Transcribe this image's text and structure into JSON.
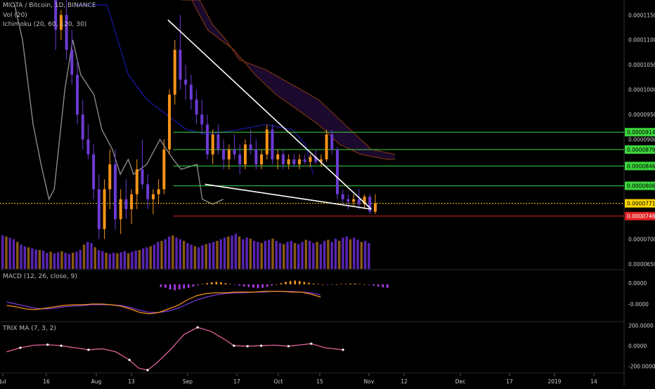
{
  "header": {
    "symbol_line": "MIOTA / Bitcoin, 1D, BINANCE",
    "vol_label": "Vol (20)",
    "ichimoku_label": "Ichimoku (20, 60, 120, 30)"
  },
  "colors": {
    "background": "#000000",
    "candle_up": "#f7931a",
    "candle_down": "#6c3bd2",
    "volume_up": "#8a5a12",
    "volume_down": "#5a24b5",
    "ichimoku_base": "#1a1aa8",
    "ichimoku_lagging": "#8a8a8a",
    "cloud_fill": "#1e0a33",
    "cloud_line": "#8a3c0a",
    "trendline": "#ffffff",
    "level_green": "#3cd63c",
    "current_price": "#ffd700",
    "support_red": "#e02020",
    "macd_line": "#f7931a",
    "signal_line": "#7b39d8",
    "hist_pos": "#f7931a",
    "hist_neg": "#b03cf0",
    "trix_line": "#e0609a"
  },
  "price_axis": {
    "ticks": [
      "0.00011500",
      "0.00011000",
      "0.00010500",
      "0.00010000",
      "0.00009500",
      "0.00009000",
      "0.00007000",
      "0.00006500"
    ],
    "tick_values": [
      0.000115,
      0.00011,
      0.000105,
      0.0001,
      9.5e-05,
      9e-05,
      7e-05,
      6.5e-05
    ],
    "range": [
      6.4e-05,
      0.000118
    ],
    "labels": [
      {
        "text": "0.00009146",
        "value": 9.146e-05,
        "color": "#3cd63c"
      },
      {
        "text": "0.00008797",
        "value": 8.797e-05,
        "color": "#3cd63c"
      },
      {
        "text": "0.00008467",
        "value": 8.467e-05,
        "color": "#3cd63c"
      },
      {
        "text": "0.00008069",
        "value": 8.069e-05,
        "color": "#3cd63c"
      },
      {
        "text": "0.00007717",
        "value": 7.717e-05,
        "color": "#ffd700"
      },
      {
        "text": "0.00007461",
        "value": 7.461e-05,
        "color": "#e02020"
      }
    ]
  },
  "macd_panel": {
    "label": "MACD (12, 26, close, 9)",
    "ticks": [
      "0.0000",
      "-0.0000"
    ]
  },
  "trix_panel": {
    "label": "TRIX MA (7, 3, 2)",
    "ticks": [
      "200.0000",
      "0.0000",
      "-200.0000"
    ],
    "tick_values": [
      200,
      0,
      -200
    ],
    "range": [
      -260,
      230
    ]
  },
  "time_axis": {
    "labels": [
      "Jul",
      "16",
      "Aug",
      "13",
      "Sep",
      "17",
      "Oct",
      "15",
      "Nov",
      "12",
      "Dec",
      "17",
      "2019",
      "14"
    ]
  },
  "chart_data": {
    "type": "candlestick",
    "title": "MIOTA / Bitcoin, 1D, BINANCE",
    "x_unit": "days (Jul 2018 - Jan 2019)",
    "candles_from_day": 20,
    "candles": [
      [
        0.000118,
        0.000118,
        0.000108,
        0.000112
      ],
      [
        0.000112,
        0.000116,
        0.00011,
        0.000115
      ],
      [
        0.000115,
        0.000118,
        0.000106,
        0.000108
      ],
      [
        0.000108,
        0.000112,
        0.000101,
        0.000103
      ],
      [
        0.000103,
        0.000106,
        9.3e-05,
        9.5e-05
      ],
      [
        9.5e-05,
        9.8e-05,
        8.8e-05,
        9e-05
      ],
      [
        9e-05,
        9.3e-05,
        8.6e-05,
        8.7e-05
      ],
      [
        8.7e-05,
        8.9e-05,
        7.8e-05,
        8e-05
      ],
      [
        8e-05,
        8.3e-05,
        7e-05,
        7.2e-05
      ],
      [
        7.2e-05,
        8.2e-05,
        7e-05,
        8e-05
      ],
      [
        8e-05,
        8.8e-05,
        7.6e-05,
        8.5e-05
      ],
      [
        8.5e-05,
        8.8e-05,
        7.2e-05,
        7.4e-05
      ],
      [
        7.4e-05,
        8e-05,
        7.1e-05,
        7.8e-05
      ],
      [
        7.8e-05,
        8.2e-05,
        7.4e-05,
        7.6e-05
      ],
      [
        7.6e-05,
        8e-05,
        7.3e-05,
        7.9e-05
      ],
      [
        7.9e-05,
        8.6e-05,
        7.6e-05,
        8.4e-05
      ],
      [
        8.4e-05,
        9e-05,
        8e-05,
        8.1e-05
      ],
      [
        8.1e-05,
        8.3e-05,
        7.6e-05,
        7.8e-05
      ],
      [
        7.8e-05,
        8e-05,
        7.5e-05,
        7.9e-05
      ],
      [
        7.9e-05,
        8.2e-05,
        7.7e-05,
        8e-05
      ],
      [
        8e-05,
        9e-05,
        7.9e-05,
        8.8e-05
      ],
      [
        8.8e-05,
        0.0001,
        8.7e-05,
        9.9e-05
      ],
      [
        9.9e-05,
        0.00011,
        9.7e-05,
        0.000108
      ],
      [
        0.000108,
        0.000115,
        0.0001,
        0.000102
      ],
      [
        0.000102,
        0.000105,
        9.8e-05,
        0.000101
      ],
      [
        0.000101,
        0.000103,
        9.6e-05,
        9.8e-05
      ],
      [
        9.8e-05,
        0.0001,
        9.3e-05,
        9.5e-05
      ],
      [
        9.5e-05,
        9.8e-05,
        9.1e-05,
        9.3e-05
      ],
      [
        9.3e-05,
        9.5e-05,
        8.6e-05,
        8.7e-05
      ],
      [
        8.7e-05,
        9.2e-05,
        8.5e-05,
        9.1e-05
      ],
      [
        9.1e-05,
        9.3e-05,
        8.7e-05,
        8.8e-05
      ],
      [
        8.8e-05,
        9e-05,
        8.4e-05,
        8.6e-05
      ],
      [
        8.6e-05,
        8.9e-05,
        8.4e-05,
        8.8e-05
      ],
      [
        8.8e-05,
        9.1e-05,
        8.6e-05,
        8.7e-05
      ],
      [
        8.7e-05,
        8.9e-05,
        8.3e-05,
        8.5e-05
      ],
      [
        8.5e-05,
        9e-05,
        8.4e-05,
        8.9e-05
      ],
      [
        8.9e-05,
        9.2e-05,
        8.7e-05,
        8.8e-05
      ],
      [
        8.8e-05,
        9e-05,
        8.4e-05,
        8.5e-05
      ],
      [
        8.5e-05,
        8.8e-05,
        8.4e-05,
        8.7e-05
      ],
      [
        8.7e-05,
        9.3e-05,
        8.6e-05,
        9.2e-05
      ],
      [
        9.2e-05,
        9.3e-05,
        8.5e-05,
        8.6e-05
      ],
      [
        8.6e-05,
        8.8e-05,
        8.4e-05,
        8.7e-05
      ],
      [
        8.7e-05,
        8.8e-05,
        8.4e-05,
        8.5e-05
      ],
      [
        8.5e-05,
        8.7e-05,
        8.4e-05,
        8.6e-05
      ],
      [
        8.6e-05,
        8.7e-05,
        8.45e-05,
        8.5e-05
      ],
      [
        8.5e-05,
        8.7e-05,
        8.4e-05,
        8.6e-05
      ],
      [
        8.6e-05,
        8.7e-05,
        8.5e-05,
        8.55e-05
      ],
      [
        8.55e-05,
        8.7e-05,
        8.45e-05,
        8.65e-05
      ],
      [
        8.65e-05,
        8.8e-05,
        8.5e-05,
        8.55e-05
      ],
      [
        8.55e-05,
        8.7e-05,
        8.45e-05,
        8.6e-05
      ],
      [
        8.6e-05,
        9.2e-05,
        8.55e-05,
        9.1e-05
      ],
      [
        9.1e-05,
        9.2e-05,
        8.7e-05,
        8.8e-05
      ],
      [
        8.8e-05,
        8.85e-05,
        7.8e-05,
        7.9e-05
      ],
      [
        7.9e-05,
        8e-05,
        7.7e-05,
        7.8e-05
      ],
      [
        7.8e-05,
        7.9e-05,
        7.6e-05,
        7.75e-05
      ],
      [
        7.75e-05,
        7.9e-05,
        7.65e-05,
        7.8e-05
      ],
      [
        7.8e-05,
        8e-05,
        7.6e-05,
        7.7e-05
      ],
      [
        7.7e-05,
        7.9e-05,
        7.6e-05,
        7.85e-05
      ],
      [
        7.85e-05,
        7.9e-05,
        7.5e-05,
        7.55e-05
      ],
      [
        7.55e-05,
        7.9e-05,
        7.5e-05,
        7.72e-05
      ]
    ],
    "volume": [
      62,
      60,
      58,
      55,
      50,
      45,
      42,
      40,
      38,
      36,
      35,
      34,
      30,
      32,
      29,
      31,
      33,
      30,
      28,
      30,
      32,
      35,
      45,
      50,
      48,
      40,
      35,
      33,
      30,
      28,
      30,
      29,
      31,
      33,
      29,
      32,
      34,
      35,
      38,
      40,
      42,
      45,
      50,
      52,
      55,
      60,
      62,
      58,
      55,
      52,
      48,
      45,
      42,
      40,
      44,
      46,
      48,
      50,
      52,
      55,
      58,
      60,
      62,
      65,
      60,
      55,
      58,
      56,
      52,
      50,
      48,
      52,
      54,
      56,
      52,
      48,
      46,
      50,
      52,
      48,
      46,
      50,
      54,
      52,
      48,
      50,
      46,
      52,
      54,
      50,
      56,
      52,
      58,
      60,
      55,
      58,
      54,
      50,
      52,
      48
    ],
    "ichimoku": {
      "base_line": [
        [
          28,
          0.000117
        ],
        [
          40,
          0.000117
        ],
        [
          48,
          0.000103
        ],
        [
          55,
          9.8e-05
        ],
        [
          70,
          9.2e-05
        ],
        [
          78,
          9.1e-05
        ],
        [
          90,
          9.2e-05
        ],
        [
          100,
          9.3e-05
        ],
        [
          110,
          9.2e-05
        ],
        [
          115,
          8.9e-05
        ],
        [
          118,
          8.3e-05
        ]
      ],
      "lagging_span": [
        [
          5,
          0.000117
        ],
        [
          8,
          0.00011
        ],
        [
          12,
          9.3e-05
        ],
        [
          15,
          8.5e-05
        ],
        [
          18,
          7.8e-05
        ],
        [
          20,
          8e-05
        ],
        [
          24,
          0.0001
        ],
        [
          27,
          0.00011
        ],
        [
          30,
          0.000103
        ],
        [
          35,
          9.9e-05
        ],
        [
          38,
          9.2e-05
        ],
        [
          42,
          8.8e-05
        ],
        [
          45,
          8.3e-05
        ],
        [
          48,
          8.6e-05
        ],
        [
          50,
          8.3e-05
        ],
        [
          55,
          8.5e-05
        ],
        [
          60,
          9e-05
        ],
        [
          65,
          8.6e-05
        ],
        [
          68,
          8.4e-05
        ],
        [
          74,
          8.5e-05
        ],
        [
          76,
          7.8e-05
        ],
        [
          80,
          7.7e-05
        ],
        [
          84,
          7.8e-05
        ]
      ],
      "cloud_top": [
        [
          68,
          0.000118
        ],
        [
          75,
          0.000118
        ],
        [
          80,
          0.000113
        ],
        [
          85,
          0.00011
        ],
        [
          90,
          0.000106
        ],
        [
          100,
          0.000104
        ],
        [
          110,
          0.000101
        ],
        [
          120,
          9.8e-05
        ],
        [
          130,
          9.3e-05
        ],
        [
          140,
          8.8e-05
        ],
        [
          149,
          8.7e-05
        ]
      ],
      "cloud_bottom": [
        [
          72,
          0.000118
        ],
        [
          78,
          0.000112
        ],
        [
          88,
          0.000108
        ],
        [
          96,
          0.000103
        ],
        [
          104,
          9.9e-05
        ],
        [
          112,
          9.6e-05
        ],
        [
          120,
          9.3e-05
        ],
        [
          128,
          8.9e-05
        ],
        [
          136,
          8.7e-05
        ],
        [
          146,
          8.6e-05
        ],
        [
          149,
          8.6e-05
        ]
      ]
    },
    "trendlines": [
      {
        "from": [
          63,
          0.000114
        ],
        "to": [
          140,
          7.6e-05
        ]
      },
      {
        "from": [
          77,
          8.1e-05
        ],
        "to": [
          140,
          7.6e-05
        ]
      }
    ],
    "horizontal_levels": [
      9.146e-05,
      8.797e-05,
      8.467e-05,
      8.069e-05,
      7.717e-05,
      7.461e-05
    ],
    "macd": {
      "histogram": [
        -0.6,
        -0.8,
        -1.2,
        -1.4,
        -1.2,
        -1.0,
        -0.8,
        -0.5,
        -0.2,
        0.1,
        0.3,
        0.5,
        0.6,
        0.5,
        0.3,
        0.1,
        -0.1,
        -0.3,
        -0.5,
        -0.6,
        -0.8,
        -0.9,
        -0.8,
        -0.6,
        -0.3,
        0.0,
        0.3,
        0.6,
        0.8,
        0.9,
        0.8,
        0.6,
        0.4,
        0.2,
        0.1,
        0.0,
        -0.1,
        -0.1,
        0.0,
        0.1,
        0.1,
        0.2,
        0.2,
        0.1,
        0.0,
        -0.1,
        -0.3,
        -0.5,
        -0.7,
        -0.8
      ],
      "macd_line": [
        -2.0,
        -2.2,
        -2.5,
        -2.6,
        -2.4,
        -2.2,
        -2.0,
        -1.9,
        -1.9,
        -1.8,
        -1.8,
        -1.9,
        -2.1,
        -2.5,
        -3.0,
        -3.2,
        -3.0,
        -2.5,
        -2.0,
        -1.2,
        -0.6,
        -0.3,
        -0.2,
        -0.2,
        -0.1,
        -0.1,
        -0.1,
        0.0,
        0.0,
        0.0,
        -0.1,
        -0.1,
        -0.4,
        -0.8
      ],
      "signal_line": [
        -1.5,
        -1.8,
        -2.1,
        -2.4,
        -2.5,
        -2.4,
        -2.2,
        -2.1,
        -2.0,
        -1.9,
        -1.9,
        -1.9,
        -2.0,
        -2.3,
        -2.7,
        -3.0,
        -3.0,
        -2.8,
        -2.4,
        -1.8,
        -1.2,
        -0.8,
        -0.5,
        -0.3,
        -0.2,
        -0.2,
        -0.1,
        -0.1,
        0.0,
        0.0,
        0.0,
        -0.1,
        -0.2,
        -0.5
      ]
    },
    "trix": {
      "line": [
        [
          0,
          -60
        ],
        [
          6,
          -20
        ],
        [
          12,
          5
        ],
        [
          18,
          10
        ],
        [
          24,
          0
        ],
        [
          30,
          -20
        ],
        [
          36,
          -40
        ],
        [
          42,
          -30
        ],
        [
          48,
          -60
        ],
        [
          54,
          -140
        ],
        [
          58,
          -220
        ],
        [
          62,
          -240
        ],
        [
          66,
          -170
        ],
        [
          72,
          -40
        ],
        [
          78,
          110
        ],
        [
          84,
          180
        ],
        [
          90,
          140
        ],
        [
          96,
          60
        ],
        [
          100,
          0
        ],
        [
          106,
          -5
        ],
        [
          112,
          0
        ],
        [
          118,
          5
        ],
        [
          124,
          -5
        ],
        [
          130,
          10
        ],
        [
          134,
          20
        ],
        [
          140,
          -20
        ],
        [
          148,
          -40
        ]
      ],
      "markers": [
        6,
        18,
        24,
        36,
        54,
        62,
        84,
        100,
        106,
        112,
        124,
        134,
        148
      ]
    }
  }
}
